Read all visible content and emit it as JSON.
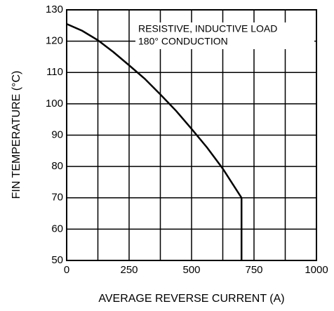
{
  "chart_data": {
    "type": "line",
    "xlabel": "AVERAGE REVERSE CURRENT  (A)",
    "ylabel": "FIN TEMPERATURE  (°C)",
    "annotations": [
      "RESISTIVE, INDUCTIVE LOAD",
      "180° CONDUCTION"
    ],
    "xlim": [
      0,
      1000
    ],
    "xticks": [
      0,
      250,
      500,
      750,
      1000
    ],
    "xminor": [
      125,
      375,
      625,
      875
    ],
    "ylim": [
      50,
      130
    ],
    "yticks": [
      50,
      60,
      70,
      80,
      90,
      100,
      110,
      120,
      130
    ],
    "grid": true,
    "series": [
      {
        "color": "#000000",
        "x": [
          0,
          62.5,
          125,
          187.5,
          250,
          312.5,
          375,
          437.5,
          500,
          562.5,
          625,
          700,
          700
        ],
        "values": [
          125.5,
          123.3,
          120.3,
          116.5,
          112.3,
          108,
          103,
          97.8,
          92,
          86,
          79.3,
          70,
          50
        ]
      }
    ]
  }
}
